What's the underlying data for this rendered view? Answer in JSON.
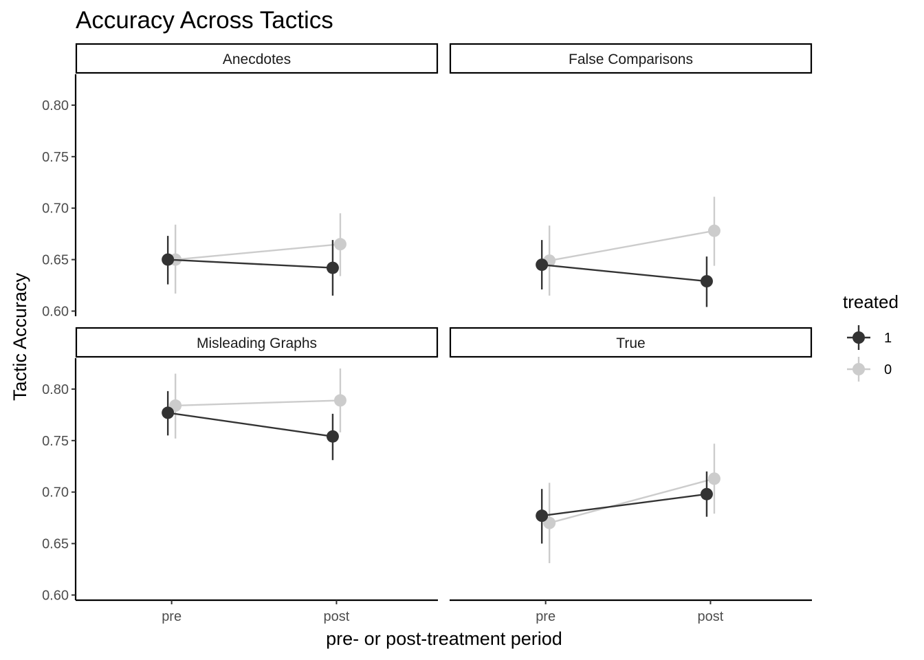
{
  "chart_data": {
    "type": "line",
    "title": "Accuracy Across Tactics",
    "xlabel": "pre- or post-treatment period",
    "ylabel": "Tactic Accuracy",
    "categories": [
      "pre",
      "post"
    ],
    "ylim": [
      0.595,
      0.83
    ],
    "yticks": [
      0.6,
      0.65,
      0.7,
      0.75,
      0.8
    ],
    "ytick_labels": [
      "0.60",
      "0.65",
      "0.70",
      "0.75",
      "0.80"
    ],
    "grid": false,
    "legend": {
      "title": "treated",
      "position": "right",
      "entries": [
        {
          "label": "1",
          "color": "#333333"
        },
        {
          "label": "0",
          "color": "#cccccc"
        }
      ]
    },
    "panels": [
      {
        "strip": "Anecdotes",
        "series": [
          {
            "name": "1",
            "color": "#333333",
            "values": [
              0.65,
              0.642
            ],
            "lower": [
              0.626,
              0.615
            ],
            "upper": [
              0.673,
              0.669
            ]
          },
          {
            "name": "0",
            "color": "#cccccc",
            "values": [
              0.65,
              0.665
            ],
            "lower": [
              0.617,
              0.634
            ],
            "upper": [
              0.684,
              0.695
            ]
          }
        ]
      },
      {
        "strip": "False Comparisons",
        "series": [
          {
            "name": "1",
            "color": "#333333",
            "values": [
              0.645,
              0.629
            ],
            "lower": [
              0.621,
              0.604
            ],
            "upper": [
              0.669,
              0.653
            ]
          },
          {
            "name": "0",
            "color": "#cccccc",
            "values": [
              0.649,
              0.678
            ],
            "lower": [
              0.615,
              0.644
            ],
            "upper": [
              0.683,
              0.711
            ]
          }
        ]
      },
      {
        "strip": "Misleading Graphs",
        "series": [
          {
            "name": "1",
            "color": "#333333",
            "values": [
              0.777,
              0.754
            ],
            "lower": [
              0.755,
              0.731
            ],
            "upper": [
              0.798,
              0.776
            ]
          },
          {
            "name": "0",
            "color": "#cccccc",
            "values": [
              0.784,
              0.789
            ],
            "lower": [
              0.752,
              0.758
            ],
            "upper": [
              0.815,
              0.82
            ]
          }
        ]
      },
      {
        "strip": "True",
        "series": [
          {
            "name": "1",
            "color": "#333333",
            "values": [
              0.677,
              0.698
            ],
            "lower": [
              0.65,
              0.676
            ],
            "upper": [
              0.703,
              0.72
            ]
          },
          {
            "name": "0",
            "color": "#cccccc",
            "values": [
              0.67,
              0.713
            ],
            "lower": [
              0.631,
              0.679
            ],
            "upper": [
              0.709,
              0.747
            ]
          }
        ]
      }
    ]
  }
}
